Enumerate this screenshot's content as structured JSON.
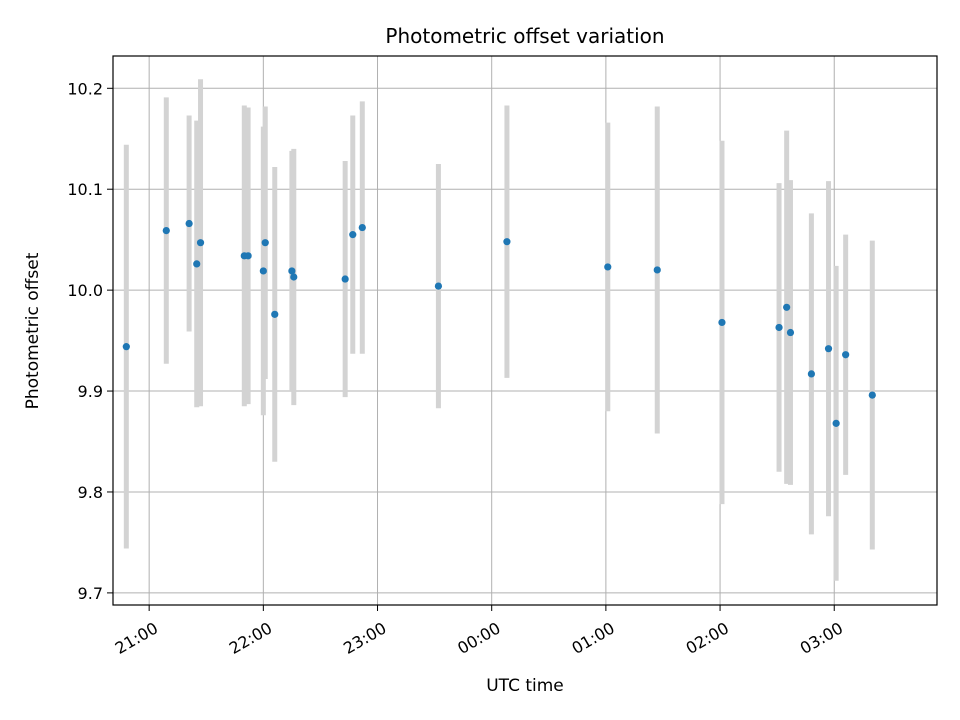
{
  "chart_data": {
    "type": "scatter",
    "title": "Photometric offset variation",
    "xlabel": "UTC time",
    "ylabel": "Photometric offset",
    "grid": true,
    "x_tick_labels": [
      "21:00",
      "22:00",
      "23:00",
      "00:00",
      "01:00",
      "02:00",
      "03:00"
    ],
    "y_tick_labels": [
      "9.7",
      "9.8",
      "9.9",
      "10.0",
      "10.1",
      "10.2"
    ],
    "y_ticks": [
      9.7,
      9.8,
      9.9,
      10.0,
      10.1,
      10.2
    ],
    "ylim": [
      9.688,
      10.232
    ],
    "xlim": [
      "20:41",
      "03:54"
    ],
    "colors": {
      "points": "#1f77b4",
      "errorbars": "#d3d3d3",
      "grid": "#b0b0b0"
    },
    "points": [
      {
        "x": "20:48",
        "y": 9.944,
        "err": 0.2
      },
      {
        "x": "21:09",
        "y": 10.059,
        "err": 0.132
      },
      {
        "x": "21:21",
        "y": 10.066,
        "err": 0.107
      },
      {
        "x": "21:25",
        "y": 10.026,
        "err": 0.142
      },
      {
        "x": "21:27",
        "y": 10.047,
        "err": 0.162
      },
      {
        "x": "21:50",
        "y": 10.034,
        "err": 0.149
      },
      {
        "x": "21:52",
        "y": 10.034,
        "err": 0.147
      },
      {
        "x": "22:00",
        "y": 10.019,
        "err": 0.143
      },
      {
        "x": "22:01",
        "y": 10.047,
        "err": 0.135
      },
      {
        "x": "22:06",
        "y": 9.976,
        "err": 0.146
      },
      {
        "x": "22:15",
        "y": 10.019,
        "err": 0.119
      },
      {
        "x": "22:16",
        "y": 10.013,
        "err": 0.127
      },
      {
        "x": "22:43",
        "y": 10.011,
        "err": 0.117
      },
      {
        "x": "22:47",
        "y": 10.055,
        "err": 0.118
      },
      {
        "x": "22:52",
        "y": 10.062,
        "err": 0.125
      },
      {
        "x": "23:32",
        "y": 10.004,
        "err": 0.121
      },
      {
        "x": "00:08",
        "y": 10.048,
        "err": 0.135
      },
      {
        "x": "01:01",
        "y": 10.023,
        "err": 0.143
      },
      {
        "x": "01:27",
        "y": 10.02,
        "err": 0.162
      },
      {
        "x": "02:01",
        "y": 9.968,
        "err": 0.18
      },
      {
        "x": "02:31",
        "y": 9.963,
        "err": 0.143
      },
      {
        "x": "02:35",
        "y": 9.983,
        "err": 0.175
      },
      {
        "x": "02:37",
        "y": 9.958,
        "err": 0.151
      },
      {
        "x": "02:48",
        "y": 9.917,
        "err": 0.159
      },
      {
        "x": "02:57",
        "y": 9.942,
        "err": 0.166
      },
      {
        "x": "03:01",
        "y": 9.868,
        "err": 0.156
      },
      {
        "x": "03:06",
        "y": 9.936,
        "err": 0.119
      },
      {
        "x": "03:20",
        "y": 9.896,
        "err": 0.153
      }
    ]
  }
}
